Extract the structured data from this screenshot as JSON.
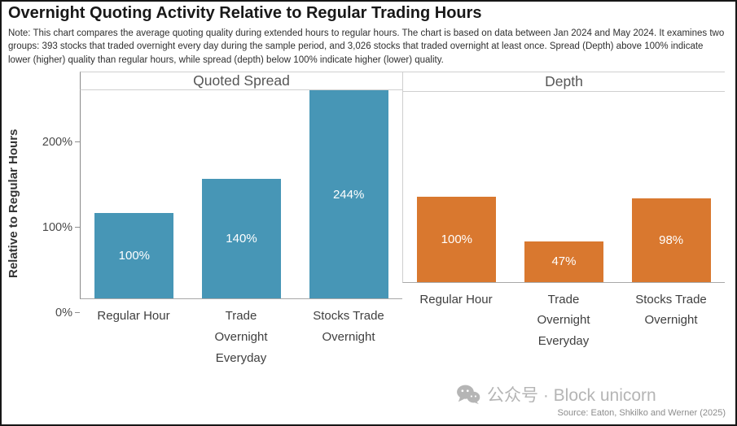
{
  "header": {
    "title": "Overnight Quoting Activity Relative to  Regular Trading Hours",
    "note": "Note: This chart compares the average quoting quality during extended hours to regular hours. The chart is based on data between Jan 2024 and May 2024.  It examines two groups: 393 stocks that traded overnight every day during the sample period, and 3,026 stocks that traded overnight at least once. Spread (Depth) above 100% indicate lower (higher) quality than regular hours, while spread (depth) below 100% indicate higher (lower) quality."
  },
  "chart_data": {
    "type": "bar",
    "title": "Overnight Quoting Activity Relative to Regular Trading Hours",
    "xlabel": "",
    "ylabel": "Relative to Regular Hours",
    "ylim": [
      0,
      256
    ],
    "yticks": [
      0,
      100,
      200
    ],
    "ytick_labels": [
      "0%",
      "100%",
      "200%"
    ],
    "grid": false,
    "legend_position": "none",
    "categories": [
      "Regular Hour",
      "Trade\nOvernight\nEveryday",
      "Stocks Trade\nOvernight"
    ],
    "panels": [
      {
        "title": "Quoted Spread",
        "color": "#4796b6",
        "values": [
          100,
          140,
          244
        ],
        "value_labels": [
          "100%",
          "140%",
          "244%"
        ]
      },
      {
        "title": "Depth",
        "color": "#d9782f",
        "values": [
          100,
          47,
          98
        ],
        "value_labels": [
          "100%",
          "47%",
          "98%"
        ]
      }
    ]
  },
  "watermark": {
    "icon": "wechat-icon",
    "text": "公众号 · Block unicorn"
  },
  "source": "Source: Eaton, Shkilko and Werner (2025)"
}
